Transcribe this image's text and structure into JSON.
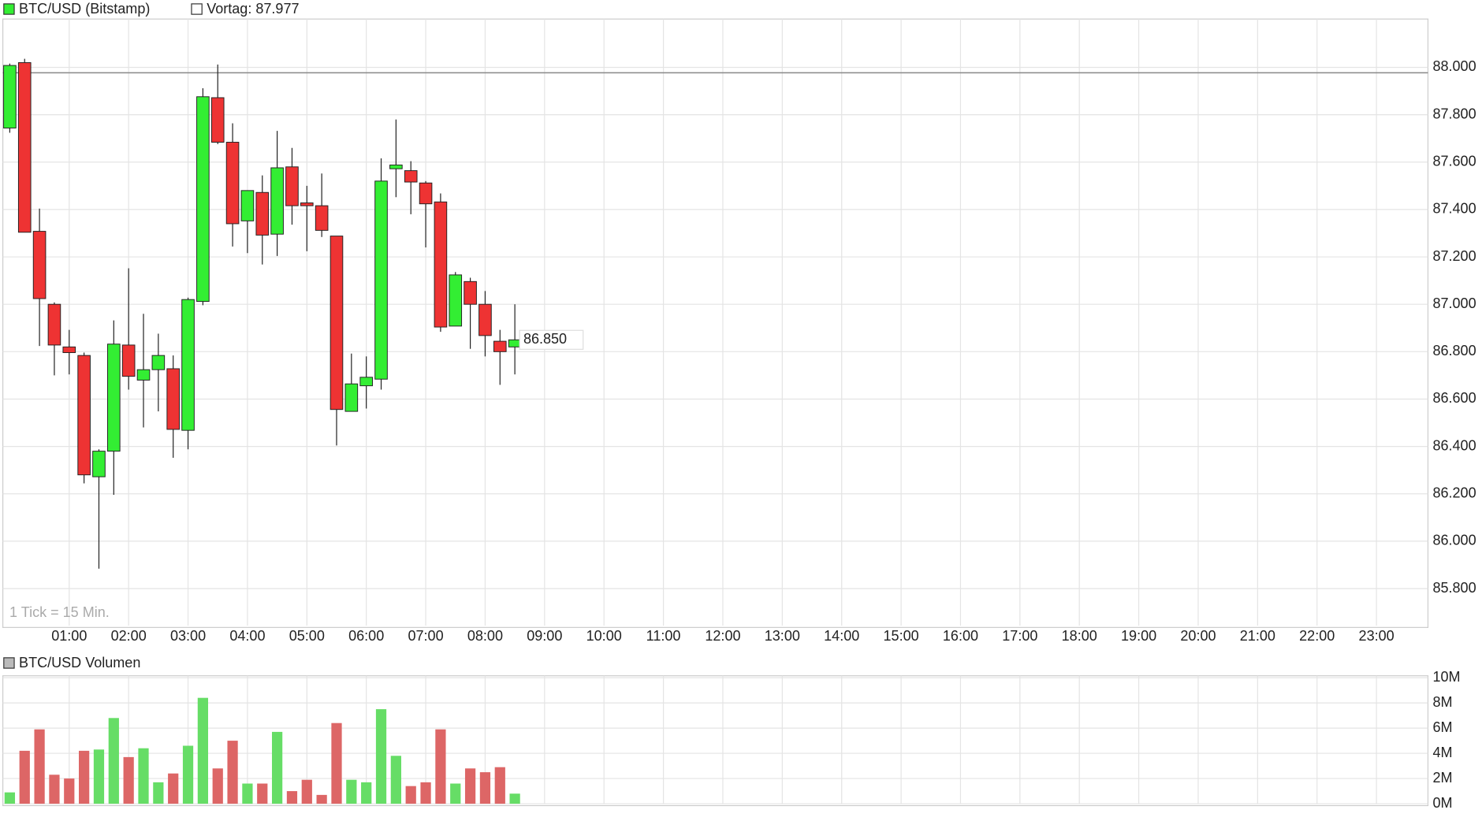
{
  "chart_data": [
    {
      "type": "candlestick",
      "title": "BTC/USD (Bitstamp)",
      "annotation": "1 Tick = 15 Min.",
      "reference_label": "Vortag: 87.977",
      "reference_value": 87977,
      "last_price_label": "86.850",
      "up_color": "#33ee33",
      "down_color": "#ee3333",
      "x": [
        0,
        15,
        30,
        45,
        60,
        75,
        90,
        105,
        120,
        135,
        150,
        165,
        180,
        195,
        210,
        225,
        240,
        255,
        270,
        285,
        300,
        315,
        330,
        345,
        360,
        375,
        390,
        405,
        420,
        435,
        450,
        465,
        480,
        495,
        510
      ],
      "open": [
        87744,
        88020,
        87308,
        87000,
        86820,
        86784,
        86272,
        86380,
        86828,
        86680,
        86724,
        86728,
        86468,
        87012,
        87872,
        87684,
        87352,
        87472,
        87296,
        87580,
        87428,
        87416,
        87288,
        86548,
        86656,
        86684,
        87572,
        87564,
        87512,
        87432,
        86908,
        87096,
        87000,
        86844,
        86820
      ],
      "high": [
        88016,
        88036,
        87404,
        87008,
        86892,
        86796,
        86388,
        86932,
        87152,
        86960,
        86876,
        86784,
        87028,
        87912,
        88012,
        87764,
        87480,
        87544,
        87732,
        87660,
        87500,
        87552,
        87288,
        86792,
        86780,
        87616,
        87780,
        87604,
        87520,
        87468,
        87136,
        87112,
        87056,
        86892,
        87000
      ],
      "low": [
        87724,
        87304,
        86824,
        86700,
        86704,
        86244,
        85884,
        86196,
        86640,
        86480,
        86548,
        86352,
        86388,
        86996,
        87676,
        87244,
        87216,
        87168,
        87204,
        87336,
        87224,
        87284,
        86404,
        86548,
        86560,
        86640,
        87452,
        87380,
        87240,
        86884,
        86908,
        86812,
        86780,
        86660,
        86704
      ],
      "close": [
        88008,
        87304,
        87024,
        86828,
        86796,
        86280,
        86380,
        86832,
        86696,
        86724,
        86784,
        86472,
        87020,
        87876,
        87684,
        87340,
        87480,
        87292,
        87576,
        87416,
        87416,
        87312,
        86556,
        86664,
        86692,
        87520,
        87588,
        87516,
        87424,
        86904,
        87124,
        87000,
        86868,
        86800,
        86850
      ],
      "xlim": [
        -7,
        1432
      ],
      "ylim": [
        85644,
        88204
      ],
      "xticks": [
        {
          "value": 60,
          "label": "01:00"
        },
        {
          "value": 120,
          "label": "02:00"
        },
        {
          "value": 180,
          "label": "03:00"
        },
        {
          "value": 240,
          "label": "04:00"
        },
        {
          "value": 300,
          "label": "05:00"
        },
        {
          "value": 360,
          "label": "06:00"
        },
        {
          "value": 420,
          "label": "07:00"
        },
        {
          "value": 480,
          "label": "08:00"
        },
        {
          "value": 540,
          "label": "09:00"
        },
        {
          "value": 600,
          "label": "10:00"
        },
        {
          "value": 660,
          "label": "11:00"
        },
        {
          "value": 720,
          "label": "12:00"
        },
        {
          "value": 780,
          "label": "13:00"
        },
        {
          "value": 840,
          "label": "14:00"
        },
        {
          "value": 900,
          "label": "15:00"
        },
        {
          "value": 960,
          "label": "16:00"
        },
        {
          "value": 1020,
          "label": "17:00"
        },
        {
          "value": 1080,
          "label": "18:00"
        },
        {
          "value": 1140,
          "label": "19:00"
        },
        {
          "value": 1200,
          "label": "20:00"
        },
        {
          "value": 1260,
          "label": "21:00"
        },
        {
          "value": 1320,
          "label": "22:00"
        },
        {
          "value": 1380,
          "label": "23:00"
        }
      ],
      "yticks": [
        {
          "value": 85800,
          "label": "85.800"
        },
        {
          "value": 86000,
          "label": "86.000"
        },
        {
          "value": 86200,
          "label": "86.200"
        },
        {
          "value": 86400,
          "label": "86.400"
        },
        {
          "value": 86600,
          "label": "86.600"
        },
        {
          "value": 86800,
          "label": "86.800"
        },
        {
          "value": 87000,
          "label": "87.000"
        },
        {
          "value": 87200,
          "label": "87.200"
        },
        {
          "value": 87400,
          "label": "87.400"
        },
        {
          "value": 87600,
          "label": "87.600"
        },
        {
          "value": 87800,
          "label": "87.800"
        },
        {
          "value": 88000,
          "label": "88.000"
        }
      ],
      "grid": true
    },
    {
      "type": "volume",
      "title": "BTC/USD Volumen",
      "up_color": "#66dd66",
      "down_color": "#dd6666",
      "x": [
        0,
        15,
        30,
        45,
        60,
        75,
        90,
        105,
        120,
        135,
        150,
        165,
        180,
        195,
        210,
        225,
        240,
        255,
        270,
        285,
        300,
        315,
        330,
        345,
        360,
        375,
        390,
        405,
        420,
        435,
        450,
        465,
        480,
        495,
        510
      ],
      "values": [
        900000,
        4200000,
        5900000,
        2300000,
        2000000,
        4200000,
        4300000,
        6800000,
        3700000,
        4400000,
        1700000,
        2400000,
        4600000,
        8400000,
        2800000,
        5000000,
        1600000,
        1600000,
        5700000,
        1000000,
        1900000,
        700000,
        6400000,
        1900000,
        1700000,
        7500000,
        3800000,
        1400000,
        1700000,
        5900000,
        1600000,
        2800000,
        2500000,
        2900000,
        800000
      ],
      "xlim": [
        -7,
        1432
      ],
      "ylim": [
        0,
        10000000
      ],
      "xticks": [
        60,
        120,
        180,
        240,
        300,
        360,
        420,
        480,
        540,
        600,
        660,
        720,
        780,
        840,
        900,
        960,
        1020,
        1080,
        1140,
        1200,
        1260,
        1320,
        1380
      ],
      "yticks": [
        {
          "value": 0,
          "label": "0M"
        },
        {
          "value": 2000000,
          "label": "2M"
        },
        {
          "value": 4000000,
          "label": "4M"
        },
        {
          "value": 6000000,
          "label": "6M"
        },
        {
          "value": 8000000,
          "label": "8M"
        },
        {
          "value": 10000000,
          "label": "10M"
        }
      ],
      "grid": true
    }
  ]
}
